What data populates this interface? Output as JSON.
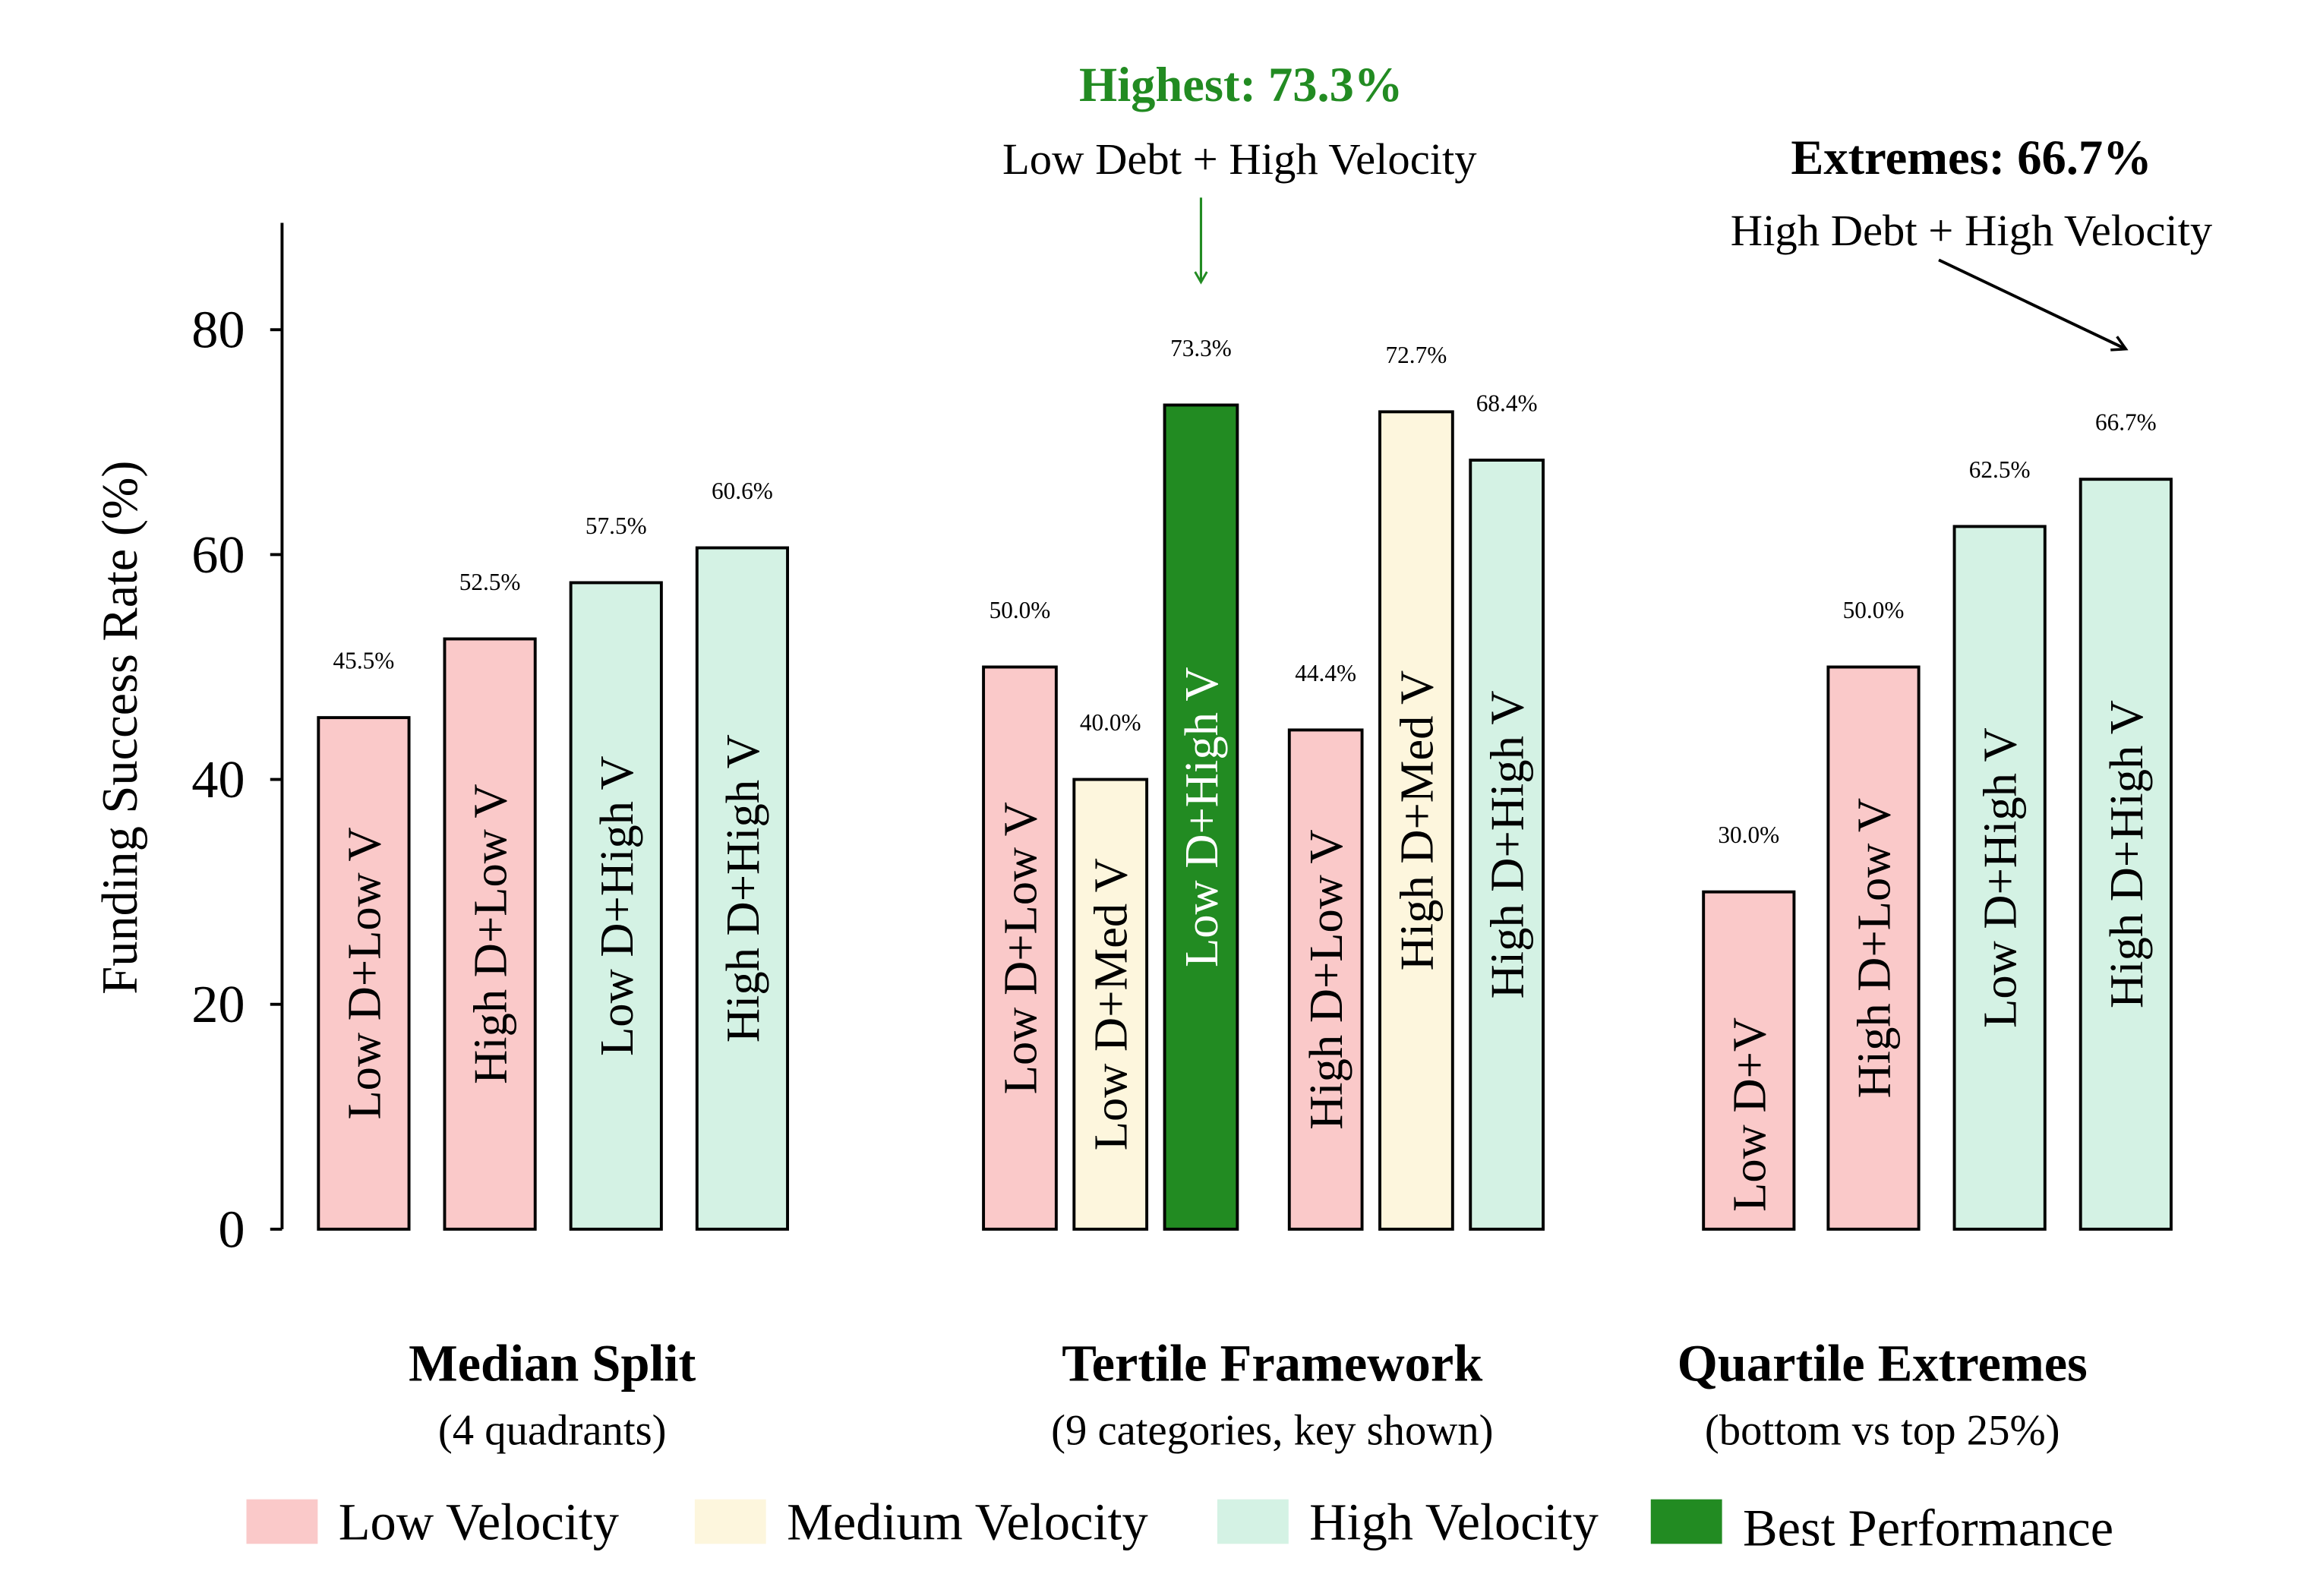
{
  "chart_data": {
    "type": "bar",
    "ylabel": "Funding Success Rate (%)",
    "ylim": [
      0,
      90
    ],
    "yticks": [
      "0",
      "20",
      "40",
      "60",
      "80"
    ],
    "grid": false,
    "legend_placement": "bottom",
    "colors": {
      "Low Velocity": "#fac9c9",
      "Medium Velocity": "#fdf6dd",
      "High Velocity": "#d4f2e4",
      "Best Performance": "#228b22"
    },
    "groups": [
      {
        "title": "Median Split",
        "subtitle": "(4 quadrants)",
        "bars": [
          {
            "label": "Low D+Low V",
            "value": 45.5,
            "value_label": "45.5%",
            "category": "Low Velocity"
          },
          {
            "label": "High D+Low V",
            "value": 52.5,
            "value_label": "52.5%",
            "category": "Low Velocity"
          },
          {
            "label": "Low D+High V",
            "value": 57.5,
            "value_label": "57.5%",
            "category": "High Velocity"
          },
          {
            "label": "High D+High V",
            "value": 60.6,
            "value_label": "60.6%",
            "category": "High Velocity"
          }
        ]
      },
      {
        "title": "Tertile Framework",
        "subtitle": "(9 categories, key shown)",
        "bars": [
          {
            "label": "Low D+Low V",
            "value": 50.0,
            "value_label": "50.0%",
            "category": "Low Velocity"
          },
          {
            "label": "Low D+Med V",
            "value": 40.0,
            "value_label": "40.0%",
            "category": "Medium Velocity"
          },
          {
            "label": "Low D+High V",
            "value": 73.3,
            "value_label": "73.3%",
            "category": "Best Performance"
          },
          {
            "label": "High D+Low V",
            "value": 44.4,
            "value_label": "44.4%",
            "category": "Low Velocity"
          },
          {
            "label": "High D+Med V",
            "value": 72.7,
            "value_label": "72.7%",
            "category": "Medium Velocity"
          },
          {
            "label": "High D+High V",
            "value": 68.4,
            "value_label": "68.4%",
            "category": "High Velocity"
          }
        ]
      },
      {
        "title": "Quartile Extremes",
        "subtitle": "(bottom vs top 25%)",
        "bars": [
          {
            "label": "Low D+V",
            "value": 30.0,
            "value_label": "30.0%",
            "category": "Low Velocity"
          },
          {
            "label": "High D+Low V",
            "value": 50.0,
            "value_label": "50.0%",
            "category": "Low Velocity"
          },
          {
            "label": "Low D+High V",
            "value": 62.5,
            "value_label": "62.5%",
            "category": "High Velocity"
          },
          {
            "label": "High D+High V",
            "value": 66.7,
            "value_label": "66.7%",
            "category": "High Velocity"
          }
        ]
      }
    ],
    "annotations": [
      {
        "title": "Highest: 73.3%",
        "text": "Low Debt + High Velocity",
        "color": "#228b22"
      },
      {
        "title": "Extremes: 66.7%",
        "text": "High Debt + High Velocity",
        "color": "#000000"
      }
    ],
    "legend": [
      "Low Velocity",
      "Medium Velocity",
      "High Velocity",
      "Best Performance"
    ]
  }
}
